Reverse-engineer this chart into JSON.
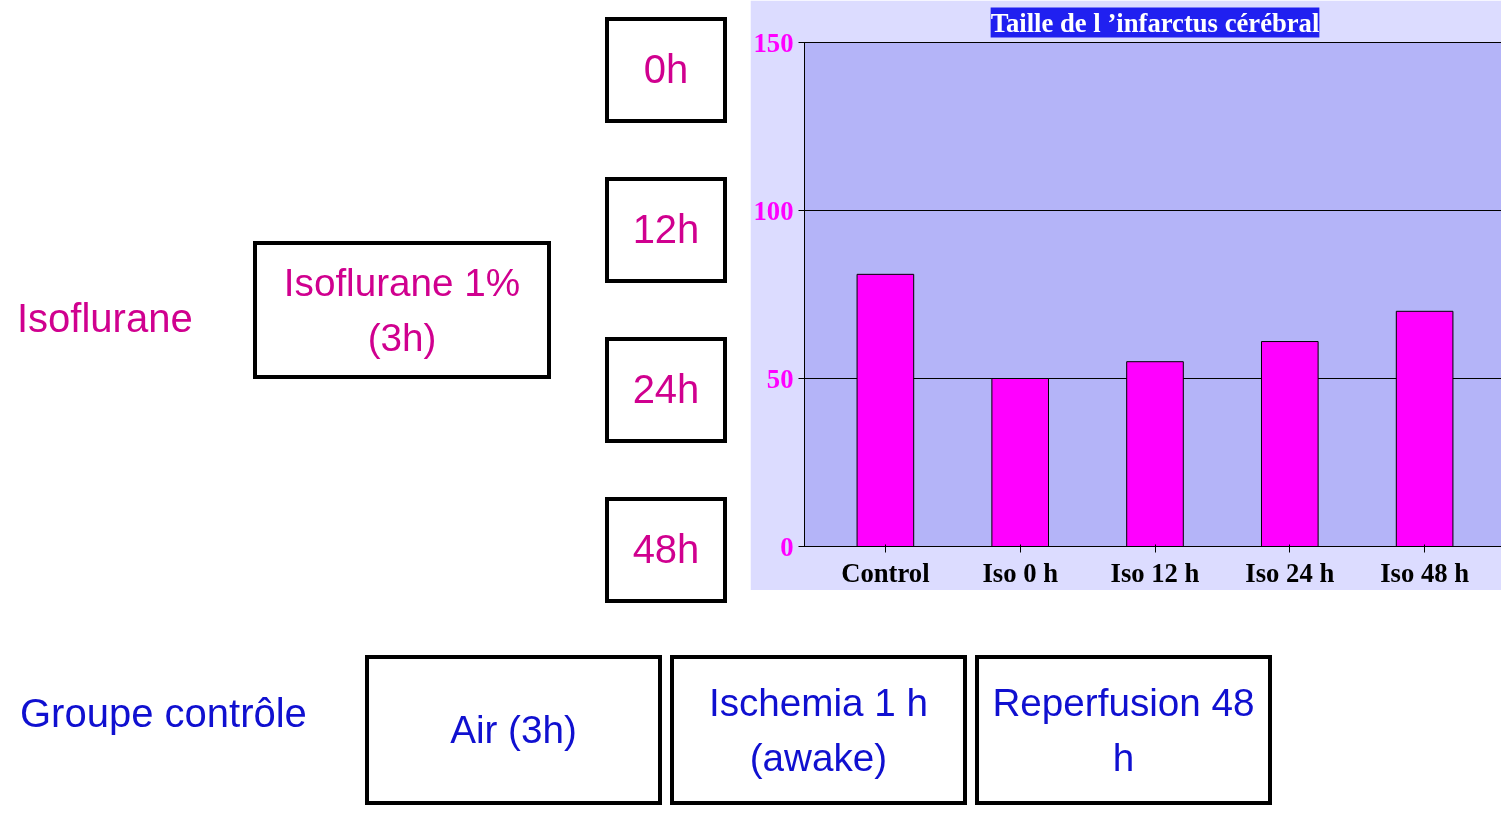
{
  "chart_data": {
    "type": "bar",
    "title": "Taille de l ’infarctus cérébral",
    "categories": [
      "Control",
      "Iso 0 h",
      "Iso 12 h",
      "Iso 24 h",
      "Iso 48 h"
    ],
    "values": [
      81,
      50,
      55,
      61,
      70
    ],
    "color": "#ff00ff",
    "ylim": [
      0,
      150
    ],
    "yticks": [
      0,
      50,
      100,
      150
    ],
    "grid": "y",
    "annotations": [
      "Isoflurane",
      "Isoflurane 1% (3h)",
      "0h",
      "12h",
      "24h",
      "48h",
      "Groupe contrôle",
      "Air (3h)",
      "Ischemia 1 h (awake)",
      "Reperfusion 48 h"
    ]
  }
}
